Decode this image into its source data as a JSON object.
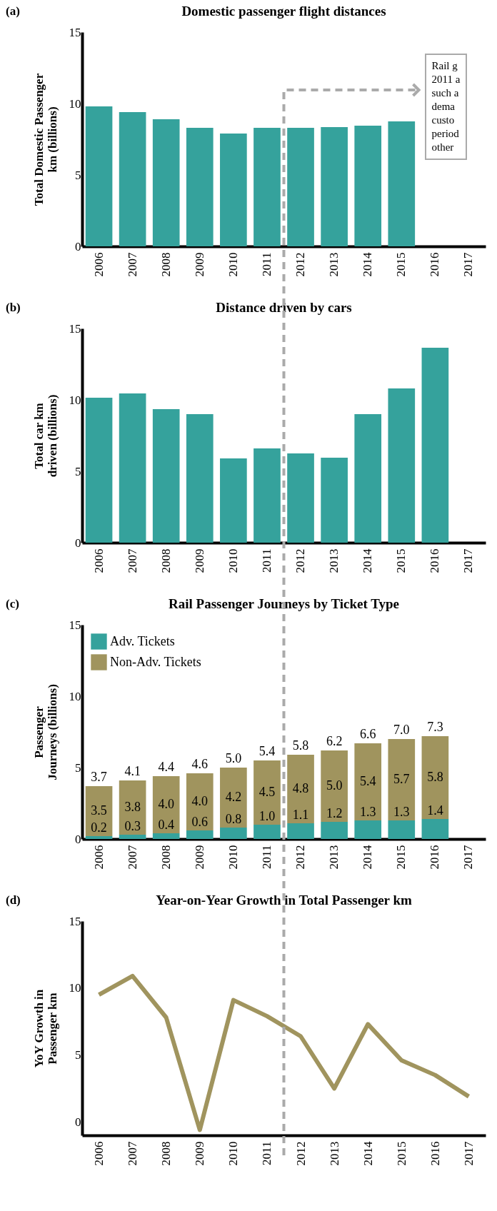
{
  "chart_data": [
    {
      "type": "bar",
      "title": "Domestic passenger flight distances",
      "ylabel": "Total Domestic Passenger\nkm (billions)",
      "categories": [
        "2006",
        "2007",
        "2008",
        "2009",
        "2010",
        "2011",
        "2012",
        "2013",
        "2014",
        "2015",
        "2016",
        "2017"
      ],
      "values": [
        9.8,
        9.4,
        8.9,
        8.3,
        7.9,
        8.3,
        8.3,
        8.35,
        8.45,
        8.75,
        null,
        null
      ],
      "color": "#35a29c",
      "ylim": [
        0,
        15
      ],
      "yticks": [
        0,
        5,
        10,
        15
      ],
      "annotations": [
        "(a)",
        "Rail g\n2011 a\nsuch a\ndema\ncusto\nperiod\nother"
      ]
    },
    {
      "type": "bar",
      "title": "Distance driven by cars",
      "ylabel": "Total car km\ndriven (billions)",
      "categories": [
        "2006",
        "2007",
        "2008",
        "2009",
        "2010",
        "2011",
        "2012",
        "2013",
        "2014",
        "2015",
        "2016",
        "2017"
      ],
      "values": [
        10.15,
        10.45,
        9.35,
        9.0,
        5.9,
        6.6,
        6.25,
        5.95,
        9.0,
        10.8,
        13.65,
        null
      ],
      "color": "#35a29c",
      "ylim": [
        0,
        15
      ],
      "yticks": [
        0,
        5,
        10,
        15
      ],
      "annotations": [
        "(b)"
      ]
    },
    {
      "type": "bar",
      "title": "Rail Passenger Journeys by Ticket Type",
      "ylabel": "Passenger\nJourneys (billions)",
      "categories": [
        "2006",
        "2007",
        "2008",
        "2009",
        "2010",
        "2011",
        "2012",
        "2013",
        "2014",
        "2015",
        "2016",
        "2017"
      ],
      "stacked": true,
      "legend": "top left",
      "series": [
        {
          "name": "Adv. Tickets",
          "color": "#35a29c",
          "values": [
            0.2,
            0.3,
            0.4,
            0.6,
            0.8,
            1.0,
            1.1,
            1.2,
            1.3,
            1.3,
            1.4,
            null
          ],
          "value_labels": [
            "0.2",
            "0.3",
            "0.4",
            "0.6",
            "0.8",
            "1.0",
            "1.1",
            "1.2",
            "1.3",
            "1.3",
            "1.4",
            null
          ]
        },
        {
          "name": "Non-Adv. Tickets",
          "color": "#a0945e",
          "values": [
            3.5,
            3.8,
            4.0,
            4.0,
            4.2,
            4.5,
            4.8,
            5.0,
            5.4,
            5.7,
            5.8,
            null
          ],
          "value_labels": [
            "3.5",
            "3.8",
            "4.0",
            "4.0",
            "4.2",
            "4.5",
            "4.8",
            "5.0",
            "5.4",
            "5.7",
            "5.8",
            null
          ]
        }
      ],
      "totals": [
        "3.7",
        "4.1",
        "4.4",
        "4.6",
        "5.0",
        "5.4",
        "5.8",
        "6.2",
        "6.6",
        "7.0",
        "7.3",
        null
      ],
      "ylim": [
        0,
        15
      ],
      "yticks": [
        0,
        5,
        10,
        15
      ],
      "annotations": [
        "(c)"
      ]
    },
    {
      "type": "line",
      "title": "Year-on-Year Growth in Total Passenger km",
      "ylabel": "YoY Growth in\nPassenger km",
      "categories": [
        "2006",
        "2007",
        "2008",
        "2009",
        "2010",
        "2011",
        "2012",
        "2013",
        "2014",
        "2015",
        "2016",
        "2017"
      ],
      "values": [
        9.5,
        10.9,
        7.8,
        -0.6,
        9.1,
        7.9,
        6.4,
        2.5,
        7.3,
        4.6,
        3.5,
        1.9
      ],
      "color": "#a0945e",
      "ylim": [
        -1,
        15
      ],
      "yticks": [
        0,
        5,
        10,
        15
      ],
      "annotations": [
        "(d)"
      ]
    }
  ]
}
